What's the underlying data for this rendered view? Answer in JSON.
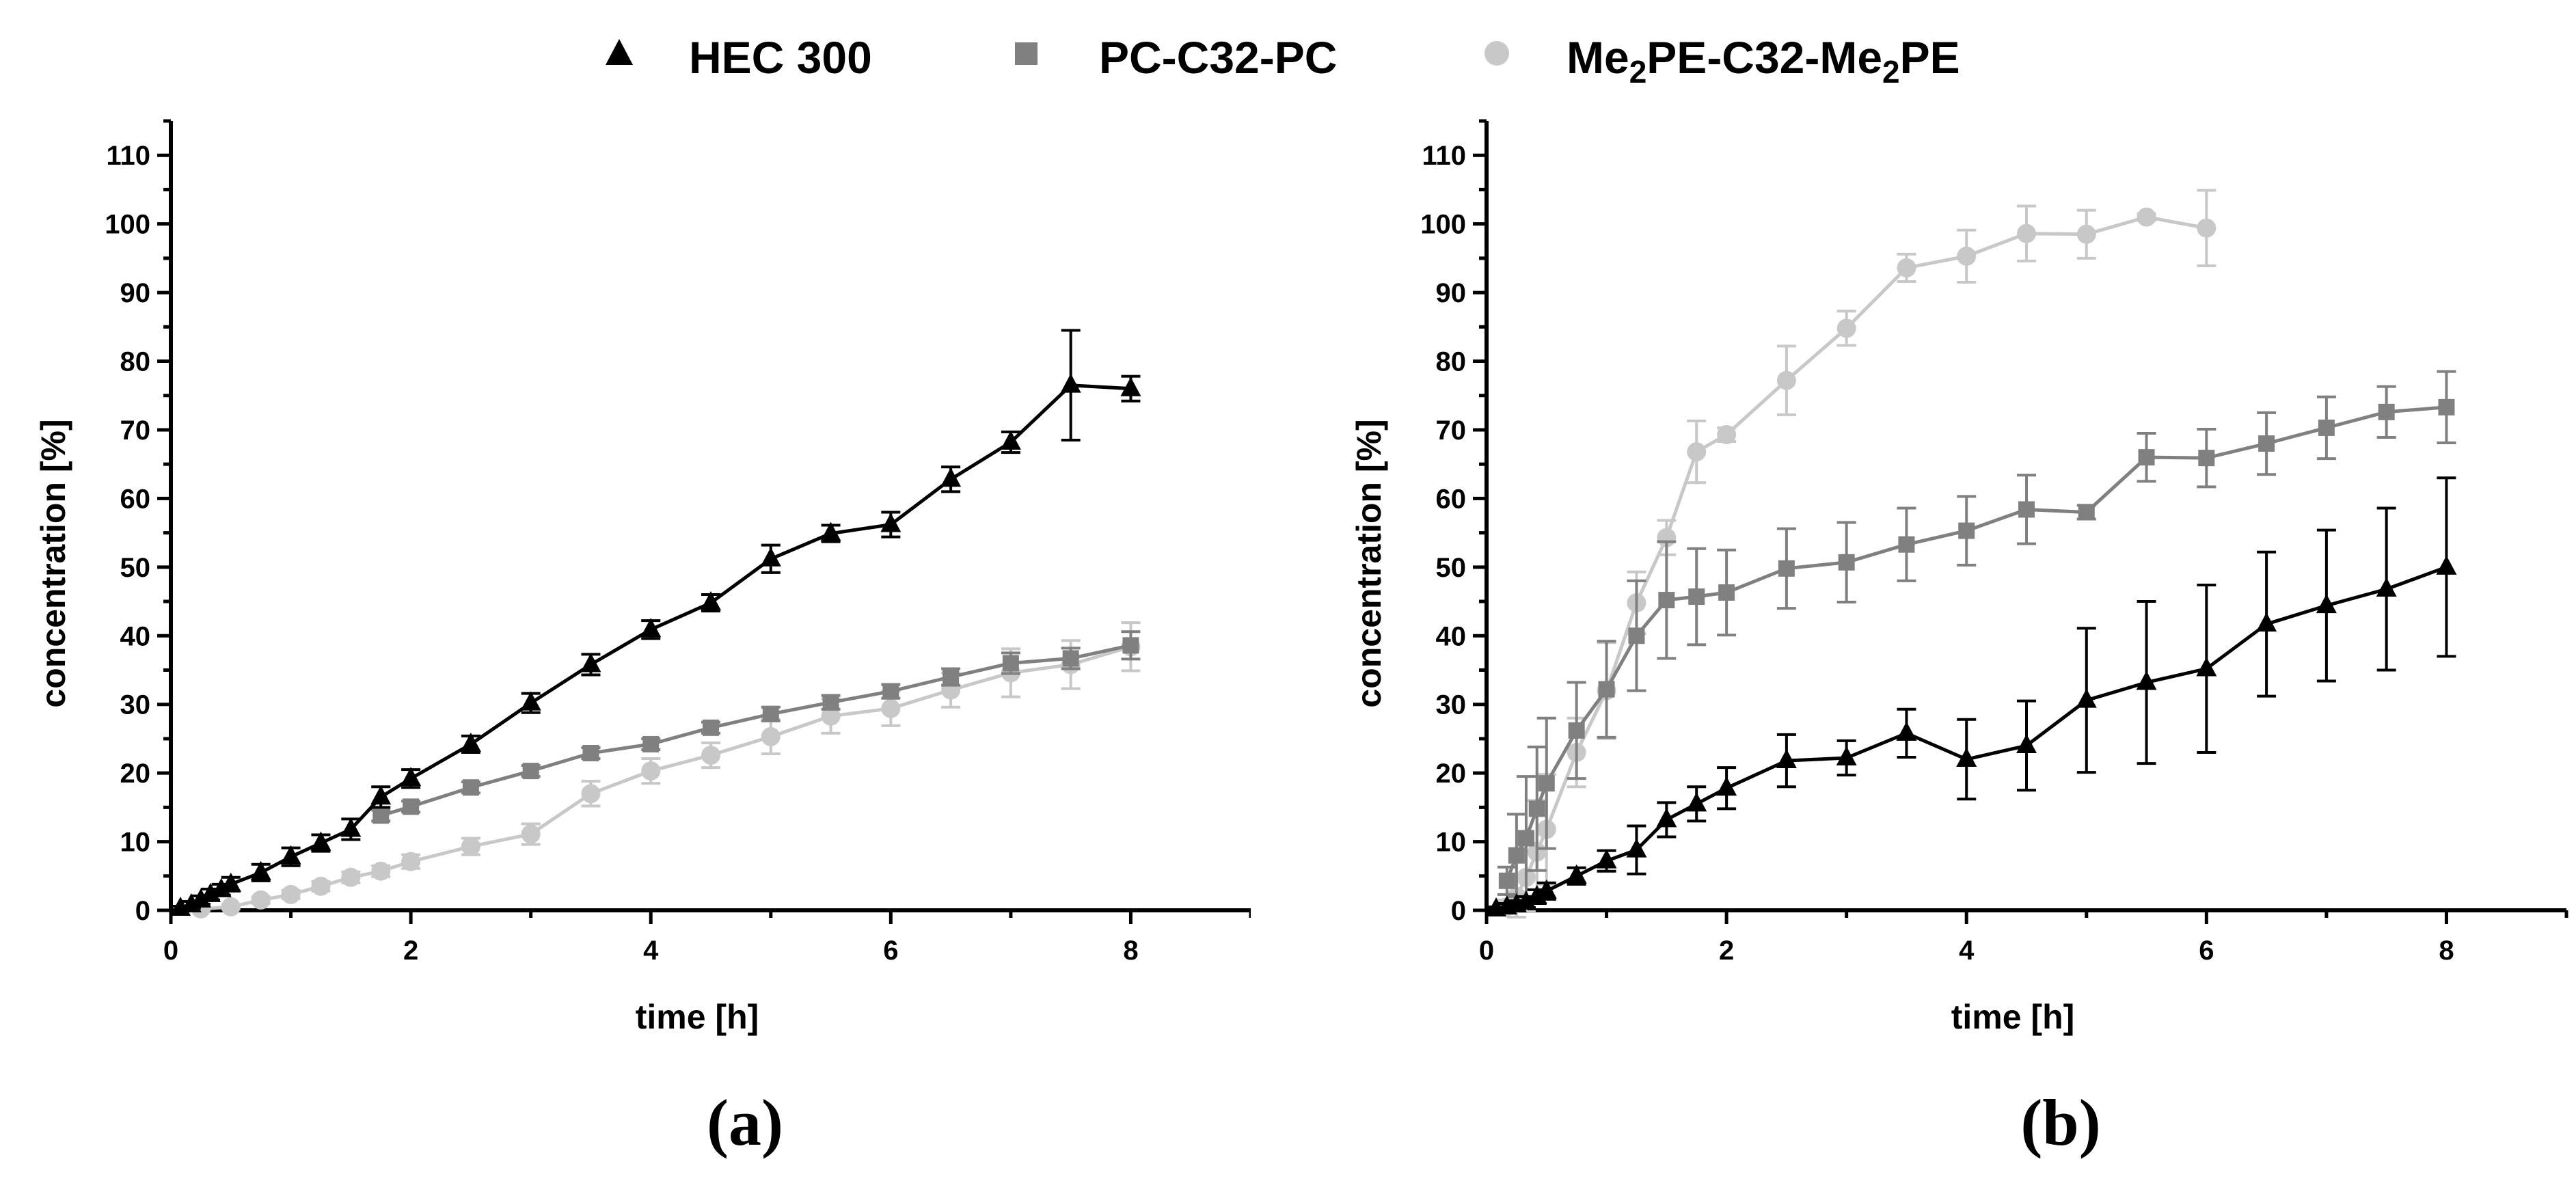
{
  "legend": {
    "entries": [
      {
        "name": "HEC 300",
        "marker": "triangle",
        "color": "#000000"
      },
      {
        "name": "PC-C32-PC",
        "marker": "square",
        "color": "#808080"
      },
      {
        "name": "Me₂PE-C32-Me₂PE",
        "marker": "circle",
        "color": "#c8c8c8"
      }
    ]
  },
  "chart_data": [
    {
      "type": "line",
      "panel_label": "(a)",
      "xlabel": "time [h]",
      "ylabel": "concentration [%]",
      "xlim": [
        0,
        9
      ],
      "ylim": [
        0,
        115
      ],
      "xticks": [
        0,
        2,
        4,
        6,
        8
      ],
      "yticks": [
        0,
        10,
        20,
        30,
        40,
        50,
        60,
        70,
        80,
        90,
        100,
        110
      ],
      "series": [
        {
          "name": "HEC 300",
          "color": "#000000",
          "marker": "triangle",
          "x": [
            0.08,
            0.17,
            0.25,
            0.33,
            0.42,
            0.5,
            0.75,
            1,
            1.25,
            1.5,
            1.75,
            2,
            2.5,
            3,
            3.5,
            4,
            4.5,
            5,
            5.5,
            6,
            6.5,
            7,
            7.5,
            8
          ],
          "y": [
            0.3,
            0.8,
            1.5,
            2.3,
            3,
            3.8,
            5.5,
            7.8,
            9.8,
            11.8,
            16.5,
            19.2,
            24.2,
            30.2,
            35.8,
            40.9,
            44.8,
            51.2,
            54.9,
            56.2,
            62.8,
            68.2,
            76.5,
            76
          ],
          "err": [
            0.3,
            0.5,
            0.6,
            0.8,
            0.8,
            1,
            1.2,
            1.3,
            1.2,
            1.5,
            1.5,
            1.3,
            1.2,
            1.4,
            1.5,
            1.3,
            1.2,
            2,
            1.2,
            1.8,
            1.8,
            1.5,
            8,
            1.8
          ]
        },
        {
          "name": "PC-C32-PC",
          "color": "#808080",
          "marker": "square",
          "x": [
            1.75,
            2,
            2.5,
            3,
            3.5,
            4,
            4.5,
            5,
            5.5,
            6,
            6.5,
            7,
            7.5,
            8
          ],
          "y": [
            13.8,
            15.1,
            17.9,
            20.3,
            22.9,
            24.2,
            26.6,
            28.6,
            30.3,
            31.9,
            34,
            36,
            36.7,
            38.6
          ],
          "err": [
            0.8,
            0.8,
            0.8,
            0.8,
            0.8,
            0.8,
            0.8,
            1,
            1,
            1,
            1.2,
            1.5,
            1.5,
            2
          ]
        },
        {
          "name": "Me₂PE-C32-Me₂PE",
          "color": "#c8c8c8",
          "marker": "circle",
          "x": [
            0.25,
            0.5,
            0.75,
            1,
            1.25,
            1.5,
            1.75,
            2,
            2.5,
            3,
            3.5,
            4,
            4.5,
            5,
            5.5,
            6,
            6.5,
            7,
            7.5,
            8
          ],
          "y": [
            0.2,
            0.5,
            1.5,
            2.3,
            3.5,
            4.8,
            5.7,
            7.1,
            9.3,
            11.1,
            17,
            20.3,
            22.6,
            25.3,
            28.3,
            29.4,
            32.1,
            34.6,
            35.8,
            38.4
          ],
          "err": [
            0.2,
            0.3,
            0.5,
            0.6,
            0.7,
            0.8,
            0.8,
            1,
            1.2,
            1.5,
            1.8,
            1.8,
            1.8,
            2.5,
            2.5,
            2.5,
            2.5,
            3.5,
            3.5,
            3.5
          ]
        }
      ]
    },
    {
      "type": "line",
      "panel_label": "(b)",
      "xlabel": "time [h]",
      "ylabel": "concentration [%]",
      "xlim": [
        0,
        9
      ],
      "ylim": [
        0,
        115
      ],
      "xticks": [
        0,
        2,
        4,
        6,
        8
      ],
      "yticks": [
        0,
        10,
        20,
        30,
        40,
        50,
        60,
        70,
        80,
        90,
        100,
        110
      ],
      "series": [
        {
          "name": "HEC 300",
          "color": "#000000",
          "marker": "triangle",
          "x": [
            0.08,
            0.17,
            0.25,
            0.33,
            0.42,
            0.5,
            0.75,
            1,
            1.25,
            1.5,
            1.75,
            2,
            2.5,
            3,
            3.5,
            4,
            4.5,
            5,
            5.5,
            6,
            6.5,
            7,
            7.5,
            8
          ],
          "y": [
            0.2,
            0.5,
            0.8,
            1.2,
            2,
            2.8,
            5,
            7.2,
            8.8,
            13.2,
            15.5,
            17.8,
            21.8,
            22.2,
            25.8,
            22,
            24,
            30.6,
            33.2,
            35.2,
            41.7,
            44.4,
            46.8,
            50
          ],
          "err": [
            0.3,
            0.5,
            0.6,
            0.8,
            1,
            1.2,
            1.2,
            1.5,
            3.5,
            2.5,
            2.5,
            3,
            3.8,
            2.5,
            3.5,
            5.8,
            6.5,
            10.5,
            11.8,
            12.2,
            10.5,
            11,
            11.8,
            13
          ]
        },
        {
          "name": "PC-C32-PC",
          "color": "#808080",
          "marker": "square",
          "x": [
            0.17,
            0.25,
            0.33,
            0.42,
            0.5,
            0.75,
            1,
            1.25,
            1.5,
            1.75,
            2,
            2.5,
            3,
            3.5,
            4,
            4.5,
            5,
            5.5,
            6,
            6.5,
            7,
            7.5,
            8
          ],
          "y": [
            4.3,
            8,
            10.5,
            14.8,
            18.5,
            26.2,
            32.2,
            40,
            45.2,
            45.7,
            46.3,
            49.8,
            50.7,
            53.3,
            55.3,
            58.4,
            58,
            66,
            65.9,
            68,
            70.3,
            72.6,
            73.3
          ],
          "err": [
            2,
            6,
            9,
            9,
            9.5,
            7,
            7,
            8,
            8.5,
            7,
            6.2,
            5.8,
            5.8,
            5.3,
            5,
            5,
            1,
            3.5,
            4.2,
            4.5,
            4.5,
            3.7,
            5.2
          ]
        },
        {
          "name": "Me₂PE-C32-Me₂PE",
          "color": "#c8c8c8",
          "marker": "circle",
          "x": [
            0.17,
            0.25,
            0.33,
            0.42,
            0.5,
            0.75,
            1,
            1.25,
            1.5,
            1.75,
            2,
            2.5,
            3,
            3.5,
            4,
            4.5,
            5,
            5.5,
            6
          ],
          "y": [
            0.5,
            2,
            4.8,
            8.5,
            11.8,
            23,
            32,
            44.8,
            54.3,
            66.8,
            69.3,
            77.2,
            84.8,
            93.6,
            95.3,
            98.6,
            98.5,
            101,
            99.4
          ],
          "err": [
            1,
            3,
            5,
            7.5,
            8,
            5,
            7,
            4.5,
            2.5,
            4.5,
            1,
            5,
            2.5,
            2,
            3.8,
            4,
            3.5,
            0.5,
            5.5
          ]
        }
      ]
    }
  ]
}
